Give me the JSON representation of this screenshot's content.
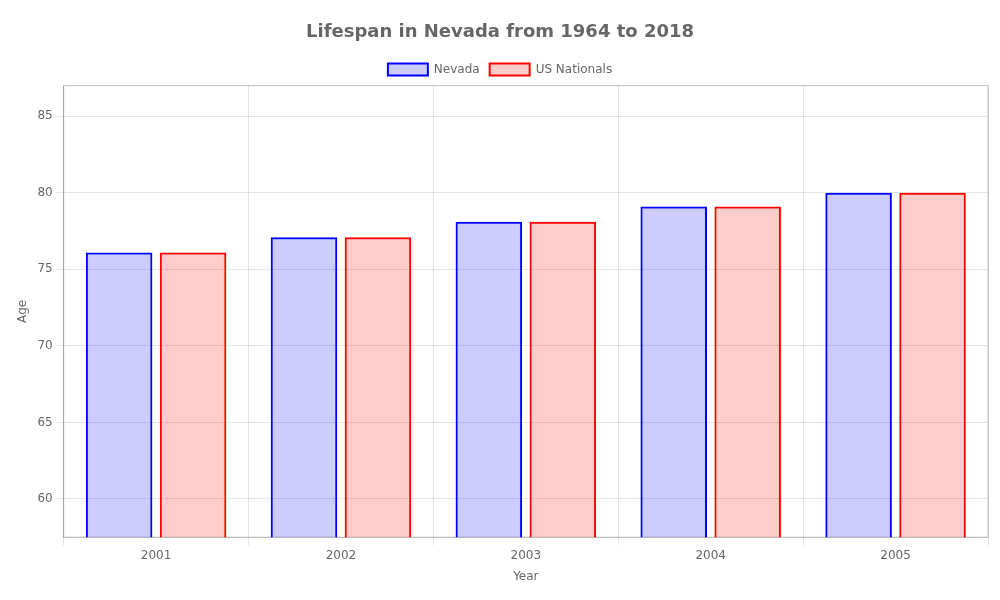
{
  "chart_data": {
    "type": "bar",
    "title": "Lifespan in Nevada from 1964 to 2018",
    "xlabel": "Year",
    "ylabel": "Age",
    "categories": [
      "2001",
      "2002",
      "2003",
      "2004",
      "2005"
    ],
    "series": [
      {
        "name": "Nevada",
        "color": "#0000ff",
        "values": [
          76.1,
          77.1,
          78.1,
          79.1,
          80.0
        ]
      },
      {
        "name": "US Nationals",
        "color": "#ff0000",
        "values": [
          76.1,
          77.1,
          78.1,
          79.1,
          80.0
        ]
      }
    ],
    "ylim": [
      57.5,
      87
    ],
    "yticks": [
      60,
      65,
      70,
      75,
      80,
      85
    ],
    "grid": true,
    "legend": "top"
  }
}
